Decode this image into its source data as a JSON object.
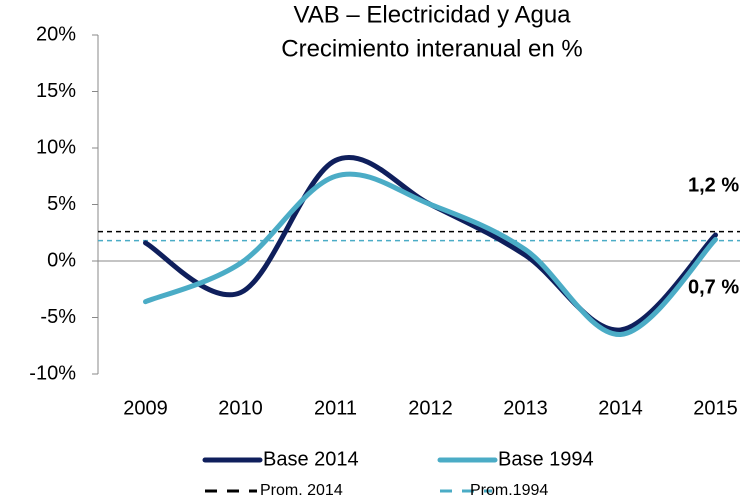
{
  "chart_data": {
    "type": "line",
    "title": "VAB – Electricidad y Agua",
    "subtitle": "Crecimiento interanual en %",
    "categories": [
      "2009",
      "2010",
      "2011",
      "2012",
      "2013",
      "2014",
      "2015"
    ],
    "series": [
      {
        "name": "Base 2014",
        "color": "#0f1f5c",
        "values": [
          1.6,
          -2.8,
          8.9,
          5.0,
          0.5,
          -6.1,
          2.3
        ]
      },
      {
        "name": "Base 1994",
        "color": "#4bacc6",
        "values": [
          -3.6,
          -0.2,
          7.5,
          5.0,
          1.0,
          -6.5,
          1.9
        ]
      }
    ],
    "reference_lines": [
      {
        "name": "Prom. 2014",
        "color": "#000000",
        "value": 2.6
      },
      {
        "name": "Prom.1994",
        "color": "#4bacc6",
        "value": 1.8
      }
    ],
    "annotations": [
      {
        "text": "1,2 %",
        "color": "#0f1f5c"
      },
      {
        "text": "0,7 %",
        "color": "#4bacc6"
      }
    ],
    "ylim": [
      -10,
      20
    ],
    "yticks": [
      {
        "value": -10,
        "label": "-10%"
      },
      {
        "value": -5,
        "label": "-5%"
      },
      {
        "value": 0,
        "label": "0%"
      },
      {
        "value": 5,
        "label": "5%"
      },
      {
        "value": 10,
        "label": "10%"
      },
      {
        "value": 15,
        "label": "15%"
      },
      {
        "value": 20,
        "label": "20%"
      }
    ]
  }
}
